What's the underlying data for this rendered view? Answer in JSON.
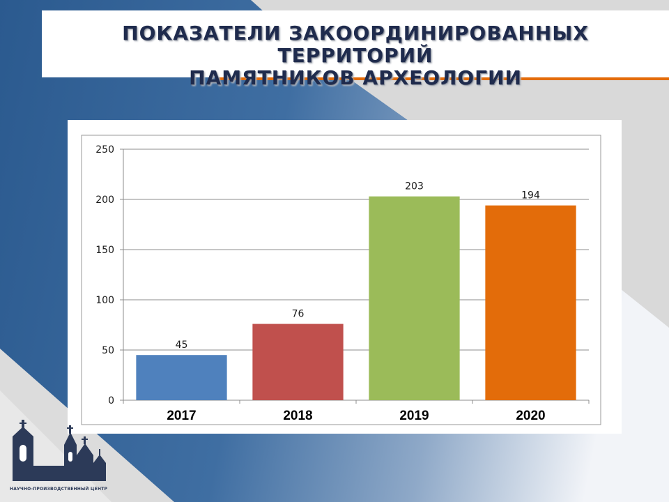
{
  "slide": {
    "title_line1": "ПОКАЗАТЕЛИ ЗАКООРДИНИРОВАННЫХ ТЕРРИТОРИЙ",
    "title_line2": "ПАМЯТНИКОВ АРХЕОЛОГИИ"
  },
  "logo": {
    "icon": "church-skyline-icon",
    "caption": "НАУЧНО-ПРОИЗВОДСТВЕННЫЙ ЦЕНТР"
  },
  "colors": {
    "title_text": "#1f2b4d",
    "accent_line": "#e36c0a",
    "background_blue": "#2f5f93",
    "background_gray": "#d9d9d9"
  },
  "chart_data": {
    "type": "bar",
    "categories": [
      "2017",
      "2018",
      "2019",
      "2020"
    ],
    "values": [
      45,
      76,
      203,
      194
    ],
    "data_labels": [
      "45",
      "76",
      "203",
      "194"
    ],
    "bar_colors": [
      "#4f81bd",
      "#c0504d",
      "#9bbb59",
      "#e36c0a"
    ],
    "ylim": [
      0,
      250
    ],
    "yticks": [
      0,
      50,
      100,
      150,
      200,
      250
    ],
    "grid": true,
    "legend": "none"
  }
}
